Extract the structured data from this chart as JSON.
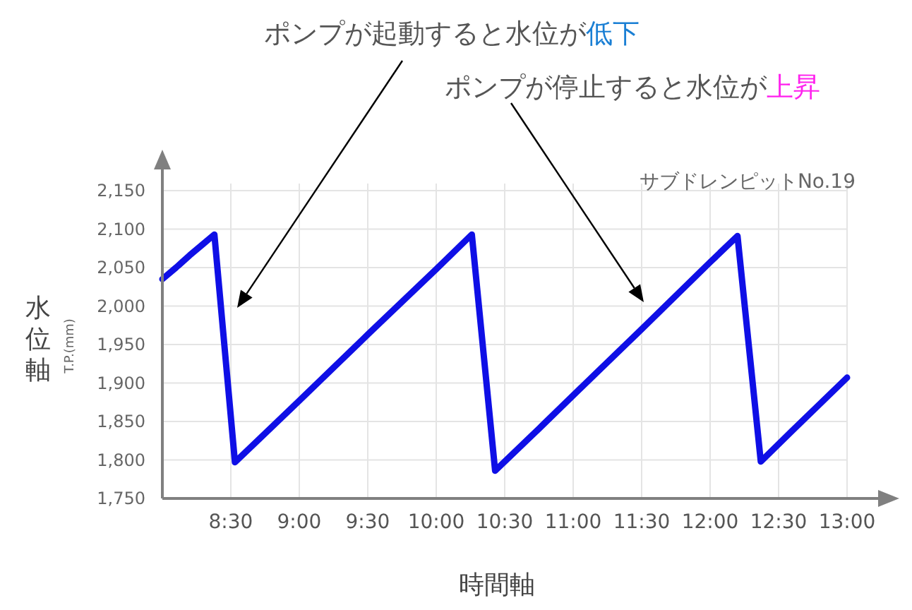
{
  "chart_data": {
    "type": "line",
    "title": "サブドレンピットNo.19",
    "xlabel": "時間軸",
    "ylabel": "水位軸",
    "x": [
      8.0,
      8.1,
      8.2,
      8.3,
      8.38,
      8.53,
      8.7,
      9.0,
      9.5,
      10.0,
      10.26,
      10.43,
      10.7,
      11.0,
      11.5,
      12.0,
      12.2,
      12.37,
      12.6,
      13.0
    ],
    "series": [
      {
        "color": "#0f0fe6",
        "values": [
          2035,
          2050,
          2066,
          2081,
          2093,
          1797,
          1826,
          1877,
          1963,
          2048,
          2093,
          1786,
          1832,
          1884,
          1970,
          2057,
          2091,
          1798,
          1838,
          1907
        ]
      }
    ],
    "xlim": [
      8,
      13
    ],
    "xticks": [
      {
        "value": 8,
        "label": null
      },
      {
        "value": 8.5,
        "label": "8:30"
      },
      {
        "value": 9,
        "label": "9:00"
      },
      {
        "value": 9.5,
        "label": "9:30"
      },
      {
        "value": 10,
        "label": "10:00"
      },
      {
        "value": 10.5,
        "label": "10:30"
      },
      {
        "value": 11,
        "label": "11:00"
      },
      {
        "value": 11.5,
        "label": "11:30"
      },
      {
        "value": 12,
        "label": "12:00"
      },
      {
        "value": 12.5,
        "label": "12:30"
      },
      {
        "value": 13,
        "label": "13:00"
      }
    ],
    "ylim": [
      1750,
      2150
    ],
    "yticks": [
      {
        "value": 1750,
        "label": "1,750"
      },
      {
        "value": 1800,
        "label": "1,800"
      },
      {
        "value": 1850,
        "label": "1,850"
      },
      {
        "value": 1900,
        "label": "1,900"
      },
      {
        "value": 1950,
        "label": "1,950"
      },
      {
        "value": 2000,
        "label": "2,000"
      },
      {
        "value": 2050,
        "label": "2,050"
      },
      {
        "value": 2100,
        "label": "2,100"
      },
      {
        "value": 2150,
        "label": "2,150"
      }
    ],
    "grid": true,
    "marker": "none",
    "line_style": "solid",
    "annotations": [
      "ポンプが起動すると水位が低下",
      "ポンプが停止すると水位が上昇",
      "T.P.(mm)"
    ]
  }
}
